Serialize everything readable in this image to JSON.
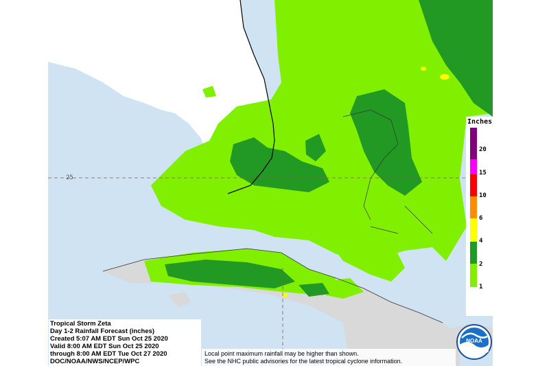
{
  "title_block": {
    "storm": "Tropical Storm Zeta",
    "product": "Day 1-2 Rainfall Forecast (inches)",
    "created": "Created 5:07 AM EDT Sun Oct 25 2020",
    "valid": "Valid 8:00 AM EDT Sun Oct 25 2020",
    "through": "through 8:00 AM EDT Tue Oct 27 2020",
    "agency": "DOC/NOAA/NWS/NCEP/WPC"
  },
  "notes": {
    "line1": "Local point maximum rainfall may be higher than shown.",
    "line2": "See the NHC public advisories for the latest tropical cyclone information."
  },
  "map": {
    "lat_label": "25",
    "ocean_color": "#cfe3f3",
    "land_color": "#d9d9d9",
    "florida_color": "#ffffff"
  },
  "legend": {
    "title": "Inches",
    "bins": [
      {
        "label": "20",
        "color": "#7f007f"
      },
      {
        "label": "15",
        "color": "#ff00ff"
      },
      {
        "label": "10",
        "color": "#ff0000"
      },
      {
        "label": "6",
        "color": "#ff8c00"
      },
      {
        "label": "4",
        "color": "#ffff00"
      },
      {
        "label": "2",
        "color": "#229922"
      },
      {
        "label": "1",
        "color": "#80f000"
      }
    ]
  },
  "logo": {
    "text": "NOAA",
    "icon": "noaa-logo"
  }
}
